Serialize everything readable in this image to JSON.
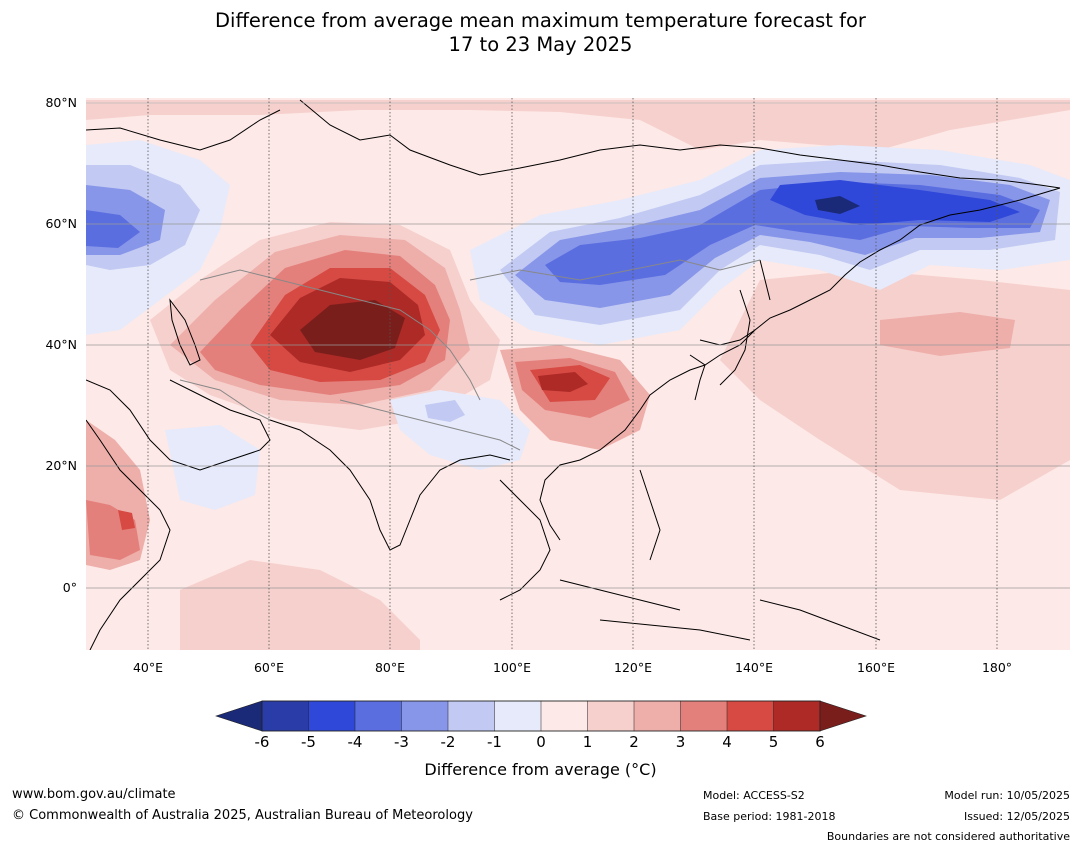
{
  "title": {
    "line1": "Difference from average mean maximum temperature forecast for",
    "line2": "17 to 23 May 2025"
  },
  "map": {
    "lat_labels": [
      "80°N",
      "60°N",
      "40°N",
      "20°N",
      "0°"
    ],
    "lon_labels": [
      "40°E",
      "60°E",
      "80°E",
      "100°E",
      "120°E",
      "140°E",
      "160°E",
      "180°"
    ],
    "region": "Asia",
    "colors": {
      "ocean_base": "#fde9e7",
      "warm_1": "#f6d0cd",
      "warm_2": "#eeaeaa",
      "warm_3": "#e4807b",
      "warm_4": "#d64a43",
      "warm_5": "#ad2a26",
      "warm_6": "#7a1e1c",
      "cool_1": "#e6eafa",
      "cool_2": "#c2c9f2",
      "cool_3": "#8796e9",
      "cool_4": "#5b6ee0",
      "cool_5": "#3048d9",
      "cool_6": "#1a2a78"
    }
  },
  "colorbar": {
    "ticks": [
      "-6",
      "-5",
      "-4",
      "-3",
      "-2",
      "-1",
      "0",
      "1",
      "2",
      "3",
      "4",
      "5",
      "6"
    ],
    "label": "Difference from average (°C)",
    "colors": [
      "#2a3ca8",
      "#3048d9",
      "#5a6ee0",
      "#8796e9",
      "#c2c9f2",
      "#e6eafa",
      "#fde9e7",
      "#f6d0cd",
      "#eeaeaa",
      "#e4807b",
      "#d64a43",
      "#ad2a26"
    ],
    "low_extend_color": "#1a2a78",
    "high_extend_color": "#7a1e1c"
  },
  "footer": {
    "website": "www.bom.gov.au/climate",
    "copyright": "© Commonwealth of Australia 2025, Australian Bureau of Meteorology",
    "model": "Model: ACCESS-S2",
    "base_period": "Base period: 1981-2018",
    "model_run": "Model run: 10/05/2025",
    "issued": "Issued: 12/05/2025",
    "disclaimer": "Boundaries are not considered authoritative"
  }
}
